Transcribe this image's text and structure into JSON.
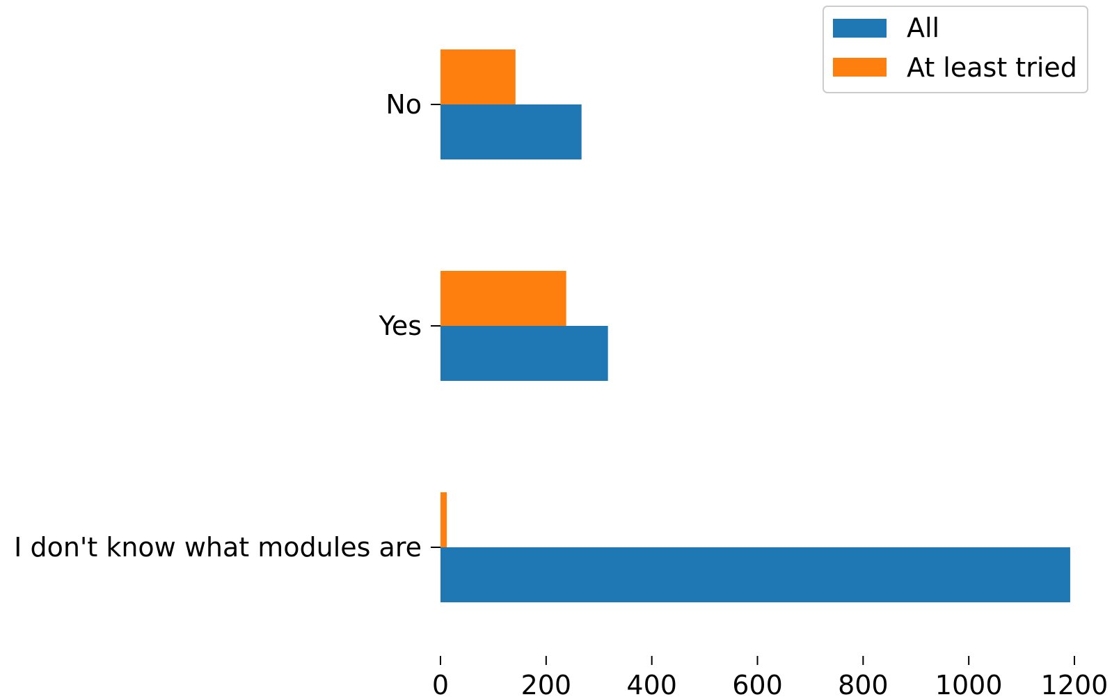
{
  "chart_data": {
    "type": "bar",
    "orientation": "horizontal",
    "title": "",
    "xlabel": "",
    "ylabel": "",
    "categories": [
      "No",
      "Yes",
      "I don't know what modules are"
    ],
    "series": [
      {
        "name": "All",
        "color": "#1f77b4",
        "values": [
          267,
          317,
          1192
        ]
      },
      {
        "name": "At least tried",
        "color": "#ff7f0e",
        "values": [
          142,
          238,
          12
        ]
      }
    ],
    "xlim": [
      0,
      1200
    ],
    "xticks": [
      0,
      200,
      400,
      600,
      800,
      1000,
      1200
    ],
    "grid": false,
    "legend": {
      "placement": "top-right",
      "entries": [
        "All",
        "At least tried"
      ]
    }
  }
}
